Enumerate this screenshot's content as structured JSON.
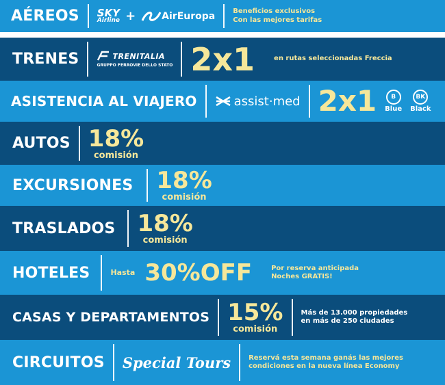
{
  "colors": {
    "light_band": "#1b95d5",
    "dark_band": "#0b4d7c",
    "highlight": "#f6e79a",
    "text": "#ffffff"
  },
  "rows": {
    "aereos": {
      "title": "AÉREOS",
      "logo1_top": "SKY",
      "logo1_bottom": "Airline",
      "plus": "+",
      "logo2": "AirEuropa",
      "note_line1": "Beneficios exclusivos",
      "note_line2": "Con las mejores tarifas"
    },
    "trenes": {
      "title": "TRENES",
      "logo": "TRENITALIA",
      "logo_sub": "GRUPPO FERROVIE DELLO STATO",
      "offer": "2x1",
      "note": "en rutas seleccionadas Freccia"
    },
    "asistencia": {
      "title": "ASISTENCIA AL VIAJERO",
      "logo": "assist·med",
      "offer": "2x1",
      "badge1": "B",
      "badge1_label": "Blue",
      "badge2": "BK",
      "badge2_label": "Black"
    },
    "autos": {
      "title": "AUTOS",
      "pct": "18%",
      "label": "comisión"
    },
    "excursiones": {
      "title": "EXCURSIONES",
      "pct": "18%",
      "label": "comisión"
    },
    "traslados": {
      "title": "TRASLADOS",
      "pct": "18%",
      "label": "comisión"
    },
    "hoteles": {
      "title": "HOTELES",
      "prefix": "Hasta",
      "offer": "30%OFF",
      "note_line1": "Por reserva anticipada",
      "note_line2": "Noches GRATIS!"
    },
    "casas": {
      "title": "CASAS Y DEPARTAMENTOS",
      "pct": "15%",
      "label": "comisión",
      "note_line1": "Más de 13.000 propiedades",
      "note_line2": "en más de 250 ciudades"
    },
    "circuitos": {
      "title": "CIRCUITOS",
      "logo": "Special Tours",
      "note_line1": "Reservá esta semana ganás las mejores",
      "note_line2": "condiciones en la nueva línea Economy"
    }
  }
}
